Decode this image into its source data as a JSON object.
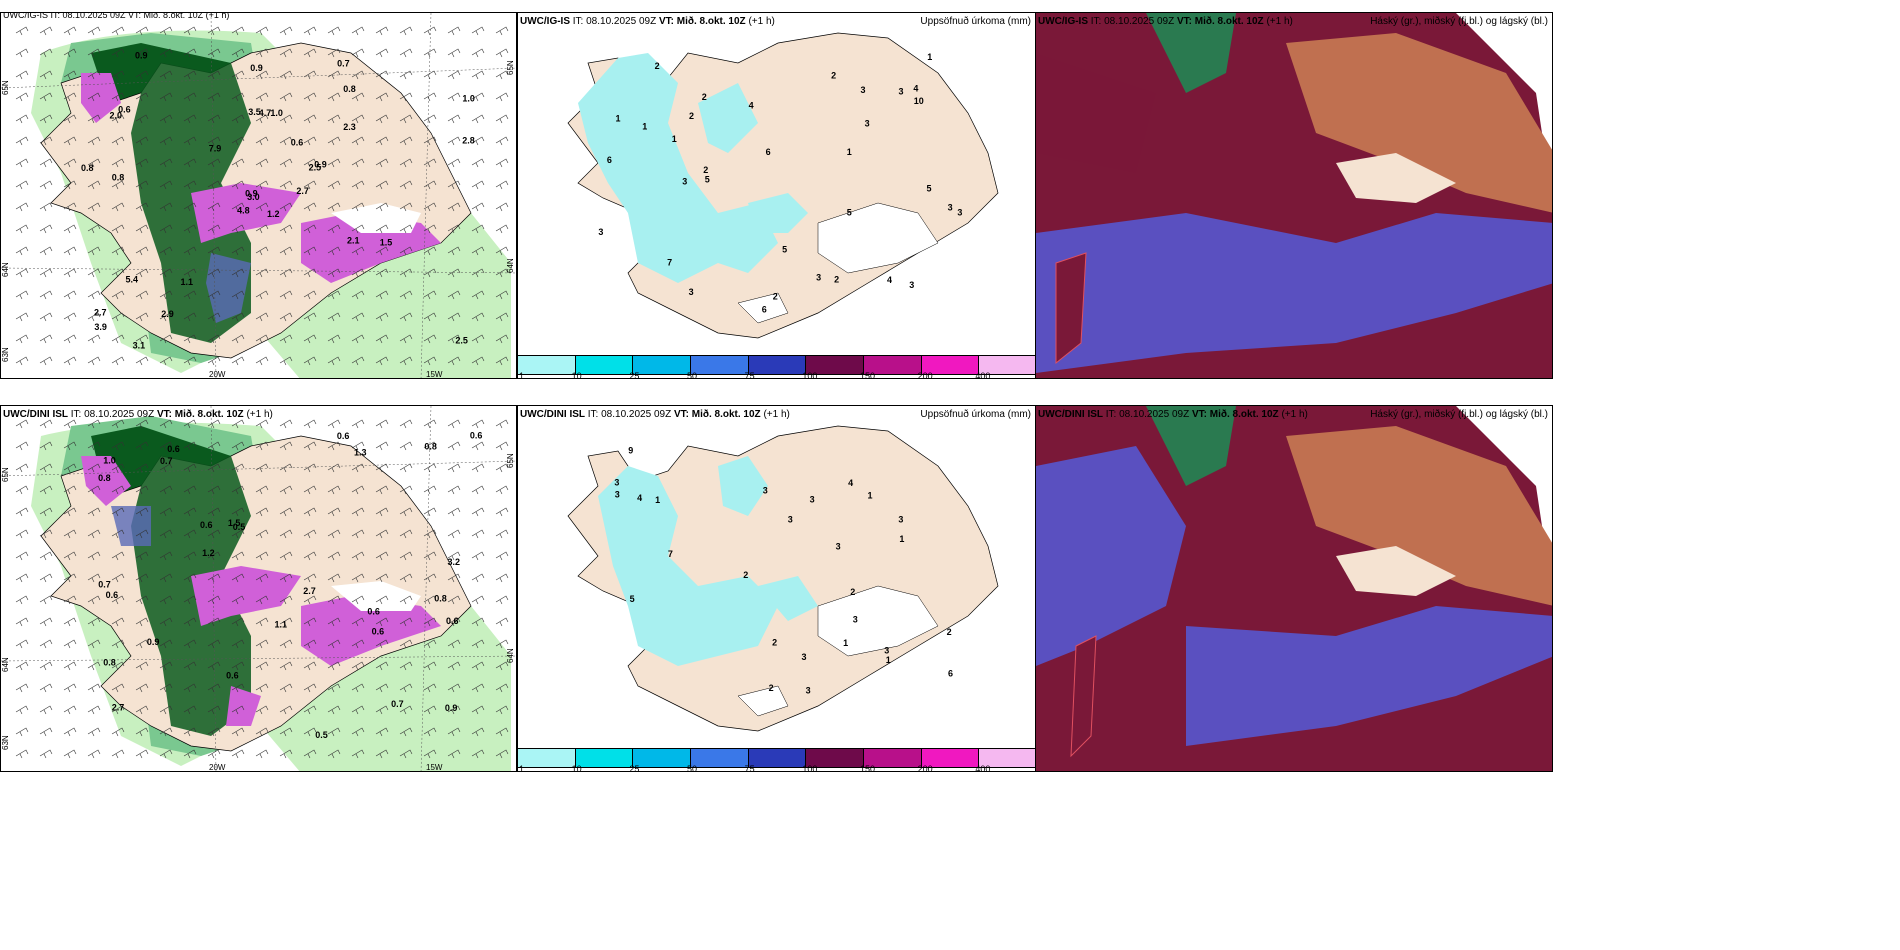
{
  "rows": [
    {
      "header_model": "UWC/IG-IS",
      "header_it": "IT: 08.10.2025 09Z",
      "header_vt": "VT: Mið. 8.okt. 10Z",
      "header_lead": "(+1 h)",
      "wind_panel_header": "UWC/IG-IS IT: 08.10.2025 09Z VT: Mið. 8.okt. 10Z (+1 h)",
      "precip_title": "Uppsöfnuð úrkoma (mm)",
      "cloud_title": "Háský (gr.), miðský (fj.bl.) og lágský (bl.)",
      "wind_values": [
        "1.2",
        "2.0",
        "3.0",
        "2.7",
        "2.5",
        "1.1",
        "0.7",
        "1.0",
        "0.8",
        "2.7",
        "0.9",
        "2.5",
        "0.8",
        "1.0",
        "4.8",
        "2.3",
        "3.1",
        "3.5",
        "0.6",
        "5.4",
        "7.9",
        "3.9",
        "2.9",
        "4.7",
        "0.9",
        "1.5",
        "0.6",
        "0.9",
        "0.8",
        "2.1",
        "2.8",
        "0.9"
      ],
      "precip_values": [
        "1",
        "2",
        "1",
        "2",
        "3",
        "6",
        "5",
        "5",
        "4",
        "3",
        "3",
        "2",
        "3",
        "7",
        "6",
        "3",
        "2",
        "4",
        "3",
        "3",
        "4",
        "5",
        "6",
        "5",
        "3",
        "1",
        "10",
        "2",
        "2",
        "3",
        "3",
        "2",
        "1",
        "1"
      ]
    },
    {
      "header_model": "UWC/DINI ISL",
      "header_it": "IT: 08.10.2025 09Z",
      "header_vt": "VT: Mið. 8.okt. 10Z",
      "header_lead": "(+1 h)",
      "wind_panel_header": "UWC/DINI ISL IT: 08.10.2025 09Z VT: Mið. 8.okt. 10Z (+1 h)",
      "precip_title": "Uppsöfnuð úrkoma (mm)",
      "cloud_title": "Háský (gr.), miðský (fj.bl.) og lágský (bl.)",
      "wind_values": [
        "0.6",
        "0.8",
        "2.7",
        "0.6",
        "0.5",
        "0.7",
        "0.8",
        "1.3",
        "0.6",
        "0.5",
        "0.8",
        "0.7",
        "1.0",
        "0.9",
        "0.6",
        "3.2",
        "1.1",
        "2.7",
        "1.5",
        "0.9",
        "0.6",
        "0.8",
        "1.2",
        "0.6",
        "0.6",
        "0.7",
        "0.6",
        "0.6"
      ],
      "precip_values": [
        "3",
        "1",
        "3",
        "3",
        "2",
        "3",
        "3",
        "4",
        "7",
        "5",
        "3",
        "3",
        "2",
        "4",
        "6",
        "1",
        "2",
        "1",
        "3",
        "3",
        "3",
        "2",
        "3",
        "2",
        "1",
        "1",
        "9"
      ]
    }
  ],
  "colorbar": {
    "labels": [
      "1",
      "10",
      "25",
      "50",
      "75",
      "100",
      "150",
      "200",
      "400"
    ],
    "colors": [
      "#aaf5f5",
      "#00e0e8",
      "#00b8e8",
      "#3a78e8",
      "#2a3ab8",
      "#6e0a4a",
      "#b8108a",
      "#f018c0",
      "#f5b8f0"
    ]
  },
  "axis_labels": {
    "lon1": "20W",
    "lon2": "15W",
    "lat1": "65N",
    "lat2": "64N",
    "lat3": "63N"
  },
  "colors": {
    "land": "#f5e3d2",
    "precip_light": "#a8f0f0",
    "green_light": "#c8f0c0",
    "green_dark": "#0a5a1e",
    "magenta": "#d060d8",
    "cloud_high": "#c07050",
    "cloud_mid": "#7a1838",
    "cloud_low": "#5a50c0"
  }
}
